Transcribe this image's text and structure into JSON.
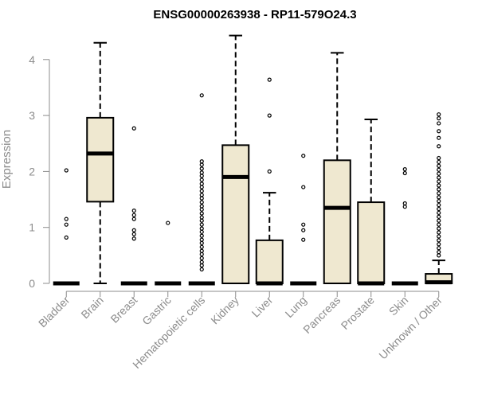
{
  "chart_data": {
    "type": "box",
    "title": "ENSG00000263938 - RP11-579O24.3",
    "ylabel": "Expression",
    "xlabel": "",
    "ylim": [
      0,
      4.45
    ],
    "yticks": [
      0,
      1,
      2,
      3,
      4
    ],
    "ytick_labels": [
      "0",
      "1",
      "2",
      "3",
      "4"
    ],
    "box_fill": "#efe8d0",
    "line_color": "#000000",
    "axis_color": "#8c8c8c",
    "categories": [
      "Bladder",
      "Brain",
      "Breast",
      "Gastric",
      "Hematopoietic cells",
      "Kidney",
      "Liver",
      "Lung",
      "Pancreas",
      "Prostate",
      "Skin",
      "Unknown / Other"
    ],
    "boxes": [
      {
        "q1": 0,
        "median": 0,
        "q3": 0,
        "whisker_low": 0,
        "whisker_high": 0,
        "outliers": [
          0.82,
          1.05,
          1.15,
          2.02
        ]
      },
      {
        "q1": 1.46,
        "median": 2.32,
        "q3": 2.96,
        "whisker_low": 0,
        "whisker_high": 4.3,
        "outliers": []
      },
      {
        "q1": 0,
        "median": 0,
        "q3": 0,
        "whisker_low": 0,
        "whisker_high": 0,
        "outliers": [
          0.8,
          0.88,
          0.95,
          1.15,
          1.22,
          1.3,
          2.77
        ]
      },
      {
        "q1": 0,
        "median": 0,
        "q3": 0,
        "whisker_low": 0,
        "whisker_high": 0,
        "outliers": [
          1.08
        ]
      },
      {
        "q1": 0,
        "median": 0,
        "q3": 0,
        "whisker_low": 0,
        "whisker_high": 0,
        "outliers": [
          0.25,
          0.32,
          0.38,
          0.45,
          0.52,
          0.58,
          0.65,
          0.72,
          0.78,
          0.85,
          0.92,
          0.98,
          1.05,
          1.12,
          1.18,
          1.25,
          1.32,
          1.38,
          1.45,
          1.52,
          1.58,
          1.65,
          1.72,
          1.78,
          1.85,
          1.92,
          1.98,
          2.05,
          2.12,
          2.18,
          3.36
        ]
      },
      {
        "q1": 0,
        "median": 1.9,
        "q3": 2.47,
        "whisker_low": 0,
        "whisker_high": 4.43,
        "outliers": []
      },
      {
        "q1": 0,
        "median": 0,
        "q3": 0.77,
        "whisker_low": 0,
        "whisker_high": 1.62,
        "outliers": [
          2.0,
          3.0,
          3.64
        ]
      },
      {
        "q1": 0,
        "median": 0,
        "q3": 0,
        "whisker_low": 0,
        "whisker_high": 0,
        "outliers": [
          0.78,
          0.95,
          1.05,
          1.72,
          2.28
        ]
      },
      {
        "q1": 0,
        "median": 1.35,
        "q3": 2.2,
        "whisker_low": 0,
        "whisker_high": 4.12,
        "outliers": []
      },
      {
        "q1": 0,
        "median": 0,
        "q3": 1.45,
        "whisker_low": 0,
        "whisker_high": 2.93,
        "outliers": []
      },
      {
        "q1": 0,
        "median": 0,
        "q3": 0,
        "whisker_low": 0,
        "whisker_high": 0,
        "outliers": [
          1.37,
          1.43,
          1.97,
          2.04
        ]
      },
      {
        "q1": 0,
        "median": 0.02,
        "q3": 0.17,
        "whisker_low": 0,
        "whisker_high": 0.41,
        "outliers": [
          0.5,
          0.56,
          0.63,
          0.7,
          0.77,
          0.84,
          0.91,
          0.98,
          1.05,
          1.12,
          1.19,
          1.26,
          1.33,
          1.4,
          1.47,
          1.54,
          1.61,
          1.68,
          1.75,
          1.82,
          1.89,
          1.96,
          2.03,
          2.1,
          2.17,
          2.24,
          2.45,
          2.6,
          2.72,
          2.86,
          2.95,
          3.02
        ]
      }
    ]
  }
}
